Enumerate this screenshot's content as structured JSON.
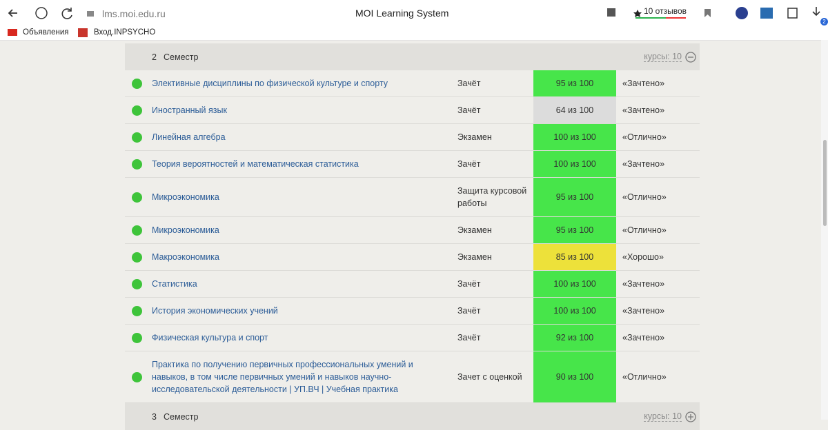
{
  "browser": {
    "url": "lms.moi.edu.ru",
    "title": "MOI Learning System",
    "reviews": "10 отзывов",
    "download_badge": "2",
    "bookmarks": [
      "Объявления",
      "Вход.INPSYCHO"
    ]
  },
  "semesters": [
    {
      "number": "2",
      "label": "Семестр",
      "courses": "курсы: 10",
      "expanded": true,
      "rows": [
        {
          "name": "Элективные дисциплины по физической культуре и спорту",
          "control": "Зачёт",
          "score": "95 из 100",
          "score_color": "#47e54a",
          "grade": "«Зачтено»"
        },
        {
          "name": "Иностранный язык",
          "control": "Зачёт",
          "score": "64 из 100",
          "score_color": "#dcdcdc",
          "grade": "«Зачтено»"
        },
        {
          "name": "Линейная алгебра",
          "control": "Экзамен",
          "score": "100 из 100",
          "score_color": "#47e54a",
          "grade": "«Отлично»"
        },
        {
          "name": "Теория вероятностей и математическая статистика",
          "control": "Зачёт",
          "score": "100 из 100",
          "score_color": "#47e54a",
          "grade": "«Зачтено»"
        },
        {
          "name": "Микроэкономика",
          "control": "Защита курсовой работы",
          "score": "95 из 100",
          "score_color": "#47e54a",
          "grade": "«Отлично»"
        },
        {
          "name": "Микроэкономика",
          "control": "Экзамен",
          "score": "95 из 100",
          "score_color": "#47e54a",
          "grade": "«Отлично»"
        },
        {
          "name": "Макроэкономика",
          "control": "Экзамен",
          "score": "85 из 100",
          "score_color": "#ede13a",
          "grade": "«Хорошо»"
        },
        {
          "name": "Статистика",
          "control": "Зачёт",
          "score": "100 из 100",
          "score_color": "#47e54a",
          "grade": "«Зачтено»"
        },
        {
          "name": "История экономических учений",
          "control": "Зачёт",
          "score": "100 из 100",
          "score_color": "#47e54a",
          "grade": "«Зачтено»"
        },
        {
          "name": "Физическая культура и спорт",
          "control": "Зачёт",
          "score": "92 из 100",
          "score_color": "#47e54a",
          "grade": "«Зачтено»"
        },
        {
          "name": "Практика по получению первичных профессиональных умений и навыков, в том числе первичных умений и навыков научно-исследовательской деятельности | УП.ВЧ | Учебная практика",
          "control": "Зачет с оценкой",
          "score": "90 из 100",
          "score_color": "#47e54a",
          "grade": "«Отлично»"
        }
      ]
    },
    {
      "number": "3",
      "label": "Семестр",
      "courses": "курсы: 10",
      "expanded": false,
      "rows": []
    }
  ]
}
